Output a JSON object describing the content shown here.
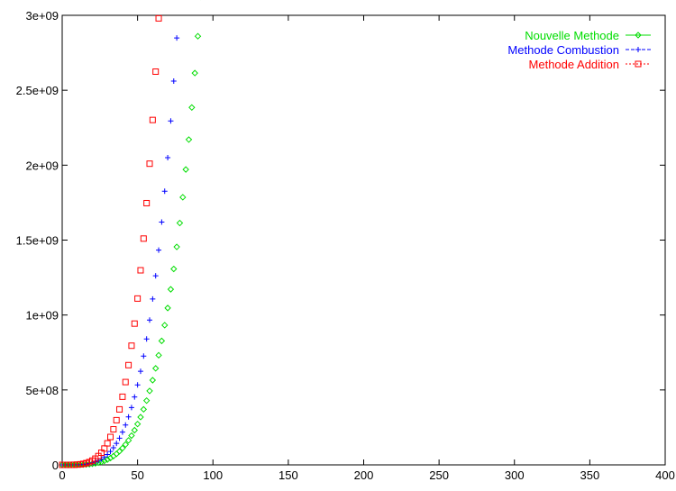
{
  "chart_data": {
    "type": "scatter",
    "title": "",
    "xlabel": "",
    "ylabel": "",
    "xlim": [
      0,
      400
    ],
    "ylim": [
      0,
      3000000000
    ],
    "x_ticks": [
      0,
      50,
      100,
      150,
      200,
      250,
      300,
      350,
      400
    ],
    "x_tick_labels": [
      "0",
      "50",
      "100",
      "150",
      "200",
      "250",
      "300",
      "350",
      "400"
    ],
    "y_ticks": [
      0,
      500000000,
      1000000000,
      1500000000,
      2000000000,
      2500000000,
      3000000000
    ],
    "y_tick_labels": [
      "0",
      "5e+08",
      "1e+09",
      "1.5e+09",
      "2e+09",
      "2.5e+09",
      "3e+09"
    ],
    "grid": false,
    "legend_position": "top-right",
    "x_start": 0,
    "x_end": 356,
    "x_step": 2,
    "curve_model": "y = a * x^4",
    "series": [
      {
        "name": "Nouvelle Methode",
        "marker": "diamond",
        "color": "#00dd00",
        "line_style": "solid",
        "a": 43.6,
        "end_value": 700000000
      },
      {
        "name": "Methode Combustion",
        "marker": "plus",
        "color": "#0000ff",
        "line_style": "dashed",
        "a": 85.4,
        "end_value": 1370000000
      },
      {
        "name": "Methode Addition",
        "marker": "square",
        "color": "#ff0000",
        "line_style": "dotted",
        "a": 177.6,
        "end_value": 2850000000
      }
    ]
  }
}
